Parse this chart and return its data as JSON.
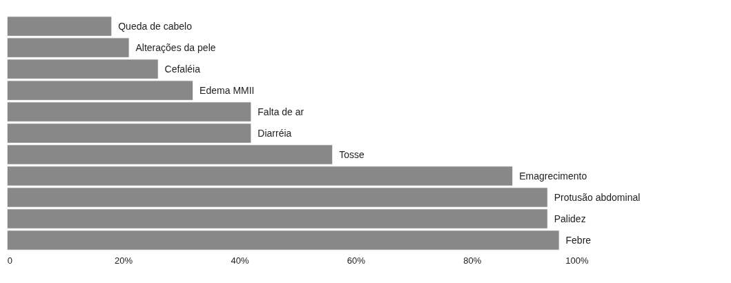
{
  "chart_data": {
    "type": "bar",
    "orientation": "horizontal",
    "categories": [
      "Queda de cabelo",
      "Alterações da pele",
      "Cefaléia",
      "Edema MMII",
      "Falta de ar",
      "Diarréia",
      "Tosse",
      "Emagrecimento",
      "Protusão abdominal",
      "Palidez",
      "Febre"
    ],
    "values": [
      18,
      21,
      26,
      32,
      42,
      42,
      56,
      87,
      93,
      93,
      95
    ],
    "color": "#888888",
    "xlim": [
      0,
      100
    ],
    "xticks": [
      0,
      {
        "value": 20,
        "label": "20%"
      },
      {
        "value": 40,
        "label": "40%"
      },
      {
        "value": 60,
        "label": "60%"
      },
      {
        "value": 80,
        "label": "80%"
      },
      {
        "value": 100,
        "label": "100%"
      }
    ],
    "tick_labels": "x",
    "grid": false
  }
}
